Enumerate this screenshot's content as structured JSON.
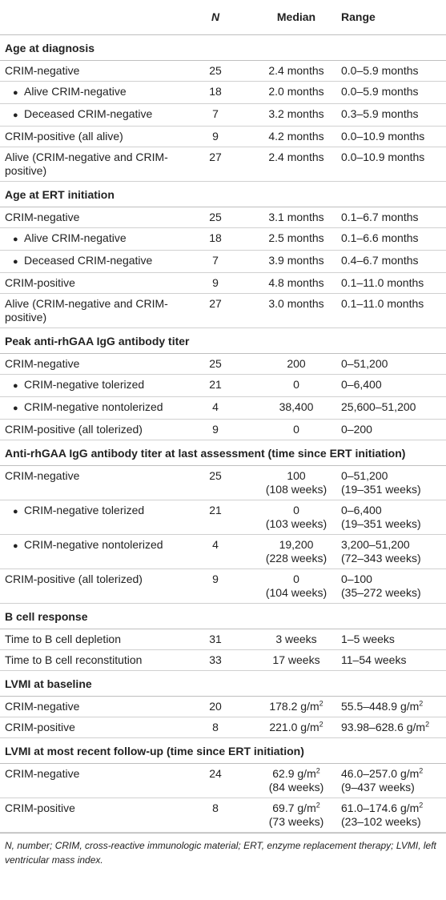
{
  "header": {
    "col_label": "",
    "col_n": "N",
    "col_median": "Median",
    "col_range": "Range"
  },
  "sections": [
    {
      "title": "Age at diagnosis",
      "rows": [
        {
          "label": "CRIM-negative",
          "sub": false,
          "n": "25",
          "median": [
            "2.4 months"
          ],
          "range": [
            "0.0–5.9 months"
          ]
        },
        {
          "label": "Alive CRIM-negative",
          "sub": true,
          "n": "18",
          "median": [
            "2.0 months"
          ],
          "range": [
            "0.0–5.9 months"
          ]
        },
        {
          "label": "Deceased CRIM-negative",
          "sub": true,
          "n": "7",
          "median": [
            "3.2 months"
          ],
          "range": [
            "0.3–5.9 months"
          ]
        },
        {
          "label": "CRIM-positive (all alive)",
          "sub": false,
          "n": "9",
          "median": [
            "4.2 months"
          ],
          "range": [
            "0.0–10.9 months"
          ]
        },
        {
          "label": "Alive (CRIM-negative and CRIM-positive)",
          "sub": false,
          "n": "27",
          "median": [
            "2.4 months"
          ],
          "range": [
            "0.0–10.9 months"
          ]
        }
      ]
    },
    {
      "title": "Age at ERT initiation",
      "rows": [
        {
          "label": "CRIM-negative",
          "sub": false,
          "n": "25",
          "median": [
            "3.1 months"
          ],
          "range": [
            "0.1–6.7 months"
          ]
        },
        {
          "label": "Alive CRIM-negative",
          "sub": true,
          "n": "18",
          "median": [
            "2.5 months"
          ],
          "range": [
            "0.1–6.6 months"
          ]
        },
        {
          "label": "Deceased CRIM-negative",
          "sub": true,
          "n": "7",
          "median": [
            "3.9 months"
          ],
          "range": [
            "0.4–6.7 months"
          ]
        },
        {
          "label": "CRIM-positive",
          "sub": false,
          "n": "9",
          "median": [
            "4.8 months"
          ],
          "range": [
            "0.1–11.0 months"
          ]
        },
        {
          "label": "Alive (CRIM-negative and CRIM-positive)",
          "sub": false,
          "n": "27",
          "median": [
            "3.0 months"
          ],
          "range": [
            "0.1–11.0 months"
          ]
        }
      ]
    },
    {
      "title": "Peak anti-rhGAA IgG antibody titer",
      "rows": [
        {
          "label": "CRIM-negative",
          "sub": false,
          "n": "25",
          "median": [
            "200"
          ],
          "range": [
            "0–51,200"
          ]
        },
        {
          "label": "CRIM-negative tolerized",
          "sub": true,
          "n": "21",
          "median": [
            "0"
          ],
          "range": [
            "0–6,400"
          ]
        },
        {
          "label": "CRIM-negative nontolerized",
          "sub": true,
          "n": "4",
          "median": [
            "38,400"
          ],
          "range": [
            "25,600–51,200"
          ]
        },
        {
          "label": "CRIM-positive (all tolerized)",
          "sub": false,
          "n": "9",
          "median": [
            "0"
          ],
          "range": [
            "0–200"
          ]
        }
      ]
    },
    {
      "title": "Anti-rhGAA IgG antibody titer at last assessment (time since ERT initiation)",
      "rows": [
        {
          "label": "CRIM-negative",
          "sub": false,
          "n": "25",
          "median": [
            "100",
            "(108 weeks)"
          ],
          "range": [
            "0–51,200",
            "(19–351 weeks)"
          ]
        },
        {
          "label": "CRIM-negative tolerized",
          "sub": true,
          "n": "21",
          "median": [
            "0",
            "(103 weeks)"
          ],
          "range": [
            "0–6,400",
            "(19–351 weeks)"
          ]
        },
        {
          "label": "CRIM-negative nontolerized",
          "sub": true,
          "n": "4",
          "median": [
            "19,200",
            "(228 weeks)"
          ],
          "range": [
            "3,200–51,200",
            "(72–343 weeks)"
          ]
        },
        {
          "label": "CRIM-positive (all tolerized)",
          "sub": false,
          "n": "9",
          "median": [
            "0",
            "(104 weeks)"
          ],
          "range": [
            "0–100",
            "(35–272 weeks)"
          ]
        }
      ]
    },
    {
      "title": "B cell response",
      "rows": [
        {
          "label": "Time to B cell depletion",
          "sub": false,
          "n": "31",
          "median": [
            "3 weeks"
          ],
          "range": [
            "1–5 weeks"
          ]
        },
        {
          "label": "Time to B cell reconstitution",
          "sub": false,
          "n": "33",
          "median": [
            "17 weeks"
          ],
          "range": [
            "11–54 weeks"
          ]
        }
      ]
    },
    {
      "title": "LVMI at baseline",
      "rows": [
        {
          "label": "CRIM-negative",
          "sub": false,
          "n": "20",
          "median": [
            "178.2 g/m²"
          ],
          "range": [
            "55.5–448.9 g/m²"
          ]
        },
        {
          "label": "CRIM-positive",
          "sub": false,
          "n": "8",
          "median": [
            "221.0 g/m²"
          ],
          "range": [
            "93.98–628.6 g/m²"
          ]
        }
      ]
    },
    {
      "title": "LVMI at most recent follow-up (time since ERT initiation)",
      "rows": [
        {
          "label": "CRIM-negative",
          "sub": false,
          "n": "24",
          "median": [
            "62.9 g/m²",
            "(84 weeks)"
          ],
          "range": [
            "46.0–257.0 g/m²",
            "(9–437 weeks)"
          ]
        },
        {
          "label": "CRIM-positive",
          "sub": false,
          "n": "8",
          "median": [
            "69.7 g/m²",
            "(73 weeks)"
          ],
          "range": [
            "61.0–174.6 g/m²",
            "(23–102 weeks)"
          ]
        }
      ]
    }
  ],
  "footnote": "N, number; CRIM, cross-reactive immunologic material; ERT, enzyme replacement therapy; LVMI, left ventricular mass index."
}
